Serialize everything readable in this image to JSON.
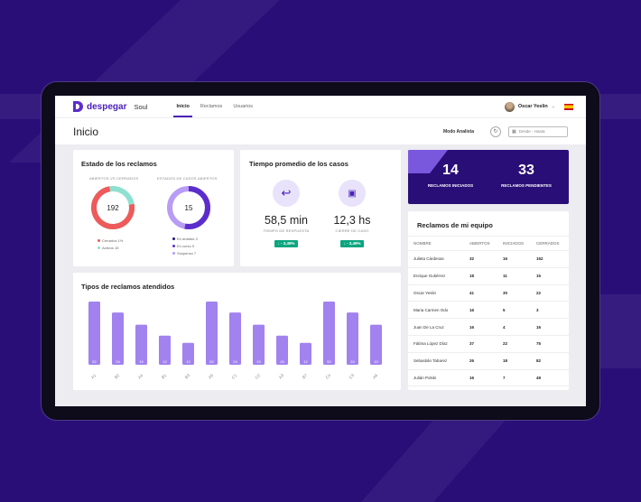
{
  "brand": {
    "logo": "despegar",
    "product": "Soul"
  },
  "nav": {
    "tabs": [
      "Inicio",
      "Reclamos",
      "Usuarios"
    ],
    "active": 0
  },
  "user": {
    "name": "Oscar Yeslin"
  },
  "header": {
    "title": "Inicio",
    "mode": "Modo Analista",
    "date_placeholder": "Desde - Hasta"
  },
  "estado": {
    "title": "Estado de los reclamos",
    "donut1": {
      "label": "ABIERTOS VS CERRADOS",
      "value": "192",
      "legend": [
        "Cerrados 1%",
        "Activos 15"
      ]
    },
    "donut2": {
      "label": "ESTADOS DE CASOS ABIERTOS",
      "value": "15",
      "legend": [
        "En análisis 3",
        "En curso 5",
        "Suspenso 7"
      ]
    },
    "colors": {
      "red": "#ef5a5a",
      "teal": "#8fe0d0",
      "purple": "#5b2ecc",
      "lilac": "#b89cf5"
    }
  },
  "tiempo": {
    "title": "Tiempo promedio de los casos",
    "metrics": [
      {
        "value": "58,5 min",
        "label": "TIEMPO DE RESPUESTA",
        "delta": "↓ - 3,49%",
        "icon": "reply-icon"
      },
      {
        "value": "12,3 hs",
        "label": "CIERRE DE CASO",
        "delta": "↓ - 3,49%",
        "icon": "clipboard-check-icon"
      }
    ]
  },
  "kpis": [
    {
      "value": "14",
      "label": "RECLAMOS INICIADOS"
    },
    {
      "value": "33",
      "label": "RECLAMOS PENDIENTES"
    }
  ],
  "equipo": {
    "title": "Reclamos de mi equipo",
    "columns": [
      "NOMBRE",
      "ABIERTOS",
      "INICIADOS",
      "CERRADOS"
    ],
    "rows": [
      [
        "Julieta Cárdenas",
        "32",
        "16",
        "152"
      ],
      [
        "Enrique Gutiérrez",
        "18",
        "11",
        "15"
      ],
      [
        "Oscar Yeslin",
        "41",
        "30",
        "22"
      ],
      [
        "Maria Carmen Odo",
        "16",
        "5",
        "3"
      ],
      [
        "Juan De La Cruz",
        "16",
        "4",
        "16"
      ],
      [
        "Fátima López Díaz",
        "37",
        "22",
        "75"
      ],
      [
        "Sebastián Tabarez",
        "26",
        "18",
        "82"
      ],
      [
        "Julián Polski",
        "16",
        "7",
        "49"
      ]
    ]
  },
  "chart_data": {
    "type": "bar",
    "title": "Tipos de reclamos atendidos",
    "categories": [
      "A1",
      "B2",
      "A4",
      "B1",
      "B3",
      "A5",
      "C1",
      "C2",
      "A3",
      "B7",
      "C4",
      "C3",
      "A6"
    ],
    "values": [
      52,
      24,
      19,
      12,
      12,
      52,
      24,
      19,
      15,
      12,
      52,
      24,
      19
    ],
    "heights": [
      52,
      43,
      33,
      24,
      18,
      52,
      43,
      33,
      24,
      18,
      52,
      43,
      33
    ],
    "color": "#a182ef"
  }
}
